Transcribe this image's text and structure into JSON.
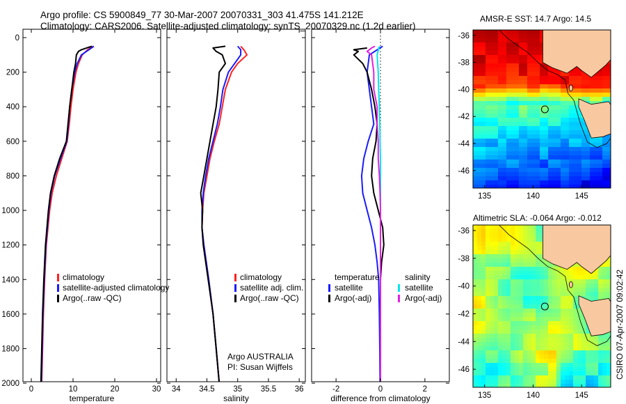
{
  "header": {
    "title_line1": "Argo profile: CS 5900849_77 30-Mar-2007 20070331_303 41.475S 141.212E",
    "title_line2": "Climatology: CARS2006. Satellite-adjusted climatology: synTS_20070329.nc (1.2d earlier)"
  },
  "side_text": "CSIRO 07-Apr-2007 09:02:42",
  "attribution": {
    "line1": "Argo AUSTRALIA",
    "line2": "PI: Susan Wijffels"
  },
  "colors": {
    "climatology": "#ff2020",
    "satellite": "#1a1aff",
    "argo": "#000000",
    "sat_salinity": "#00e5ee",
    "argo_salinity": "#e020e0",
    "land": "#f8c8a0"
  },
  "chart_data": [
    {
      "id": "temperature",
      "type": "line",
      "xlabel": "temperature",
      "ylabel": "",
      "xlim": [
        -2,
        31
      ],
      "ylim": [
        2040,
        0
      ],
      "x_ticks": [
        "0",
        "10",
        "20",
        "30"
      ],
      "y_ticks": [
        "0",
        "200",
        "400",
        "600",
        "800",
        "1000",
        "1200",
        "1400",
        "1600",
        "1800",
        "2000"
      ],
      "legend": [
        "climatology",
        "satellite-adjusted climatology",
        "Argo(..raw -QC)"
      ],
      "series": [
        {
          "name": "climatology",
          "color": "#ff2020",
          "depth": [
            50,
            70,
            100,
            150,
            200,
            300,
            400,
            500,
            600,
            700,
            800,
            900,
            1000,
            1200,
            1400,
            1600,
            1800,
            2000
          ],
          "values": [
            14.8,
            13.5,
            12.2,
            11.3,
            10.7,
            10.0,
            9.5,
            9.1,
            8.6,
            7.3,
            6.0,
            5.0,
            4.4,
            3.6,
            3.2,
            2.9,
            2.7,
            2.5
          ]
        },
        {
          "name": "satellite-adjusted climatology",
          "color": "#1a1aff",
          "depth": [
            50,
            70,
            100,
            150,
            200,
            300,
            400,
            500,
            600,
            700,
            800,
            900,
            1000,
            1200,
            1400,
            1600,
            1800,
            2000
          ],
          "values": [
            15.0,
            13.8,
            12.0,
            11.0,
            10.4,
            9.7,
            9.2,
            8.9,
            8.5,
            7.0,
            5.6,
            4.7,
            4.2,
            3.5,
            3.1,
            2.8,
            2.6,
            2.4
          ]
        },
        {
          "name": "Argo(..raw -QC)",
          "color": "#000000",
          "depth": [
            50,
            70,
            80,
            100,
            150,
            200,
            300,
            400,
            500,
            600,
            700,
            800,
            900,
            1000,
            1200,
            1400,
            1600,
            1800,
            2000
          ],
          "values": [
            14.5,
            12.0,
            11.3,
            10.8,
            10.6,
            10.2,
            9.7,
            9.2,
            8.8,
            8.4,
            6.8,
            5.5,
            4.6,
            4.1,
            3.4,
            3.0,
            2.7,
            2.5,
            2.3
          ]
        }
      ]
    },
    {
      "id": "salinity",
      "type": "line",
      "xlabel": "salinity",
      "ylabel": "",
      "xlim": [
        33.85,
        36.1
      ],
      "ylim": [
        2040,
        0
      ],
      "x_ticks": [
        "34",
        "34.5",
        "35",
        "35.5",
        "36"
      ],
      "legend": [
        "climatology",
        "satellite adj. clim.",
        "Argo(..raw -QC)"
      ],
      "series": [
        {
          "name": "climatology",
          "color": "#ff2020",
          "depth": [
            50,
            70,
            100,
            150,
            200,
            300,
            400,
            500,
            600,
            700,
            800,
            900,
            1000,
            1100,
            1200,
            1400,
            1600,
            1800,
            2000
          ],
          "values": [
            35.05,
            35.1,
            35.15,
            35.0,
            34.9,
            34.8,
            34.75,
            34.7,
            34.62,
            34.55,
            34.5,
            34.45,
            34.43,
            34.42,
            34.45,
            34.53,
            34.6,
            34.65,
            34.7
          ]
        },
        {
          "name": "satellite adj. clim.",
          "color": "#1a1aff",
          "depth": [
            50,
            70,
            100,
            150,
            200,
            300,
            400,
            500,
            600,
            700,
            800,
            900,
            1000,
            1100,
            1200,
            1400,
            1600,
            1800,
            2000
          ],
          "values": [
            35.0,
            35.05,
            35.05,
            34.95,
            34.85,
            34.76,
            34.72,
            34.67,
            34.6,
            34.53,
            34.48,
            34.44,
            34.42,
            34.42,
            34.45,
            34.53,
            34.6,
            34.65,
            34.7
          ]
        },
        {
          "name": "Argo(..raw -QC)",
          "color": "#000000",
          "depth": [
            50,
            60,
            80,
            100,
            150,
            200,
            300,
            400,
            500,
            600,
            700,
            800,
            900,
            1000,
            1100,
            1200,
            1400,
            1600,
            1800,
            2000
          ],
          "values": [
            34.8,
            34.6,
            34.65,
            34.75,
            34.8,
            34.7,
            34.68,
            34.65,
            34.6,
            34.55,
            34.5,
            34.45,
            34.4,
            34.43,
            34.42,
            34.44,
            34.52,
            34.6,
            34.65,
            34.7
          ]
        }
      ]
    },
    {
      "id": "difference",
      "type": "line",
      "xlabel": "difference from climatology",
      "ylabel": "",
      "xlim": [
        -3.1,
        3.1
      ],
      "ylim": [
        2040,
        0
      ],
      "x_ticks": [
        "-2",
        "0",
        "2"
      ],
      "legend": [
        "temperature",
        "satellite",
        "Argo(-adj)",
        "salinity",
        "satellite",
        "Argo(-adj)"
      ],
      "series": [
        {
          "name": "temperature satellite",
          "color": "#1a1aff",
          "depth": [
            50,
            100,
            200,
            300,
            400,
            500,
            600,
            700,
            800,
            900,
            1000,
            1100,
            1200,
            1300,
            1400,
            1600,
            1800,
            2000
          ],
          "values": [
            0.1,
            -0.5,
            -0.6,
            -0.5,
            -0.4,
            -0.3,
            -0.55,
            -0.75,
            -0.85,
            -0.8,
            -0.6,
            -0.4,
            -0.25,
            -0.15,
            -0.08,
            -0.05,
            -0.03,
            -0.02
          ]
        },
        {
          "name": "temperature Argo(-adj)",
          "color": "#000000",
          "depth": [
            60,
            70,
            80,
            100,
            150,
            200,
            300,
            400,
            500,
            600,
            700,
            800,
            900,
            1000,
            1100,
            1200,
            1300,
            1400,
            1600,
            1800,
            2000
          ],
          "values": [
            -0.6,
            -1.2,
            -1.0,
            -1.2,
            -0.8,
            -0.6,
            -0.4,
            -0.25,
            -0.15,
            -0.2,
            -0.35,
            -0.4,
            -0.3,
            -0.1,
            0.1,
            0.15,
            0.05,
            0.0,
            0.0,
            0.0,
            0.0
          ]
        },
        {
          "name": "salinity satellite",
          "color": "#00e5ee",
          "depth": [
            50,
            100,
            200,
            300,
            400,
            500,
            600,
            700,
            800,
            900,
            1000,
            1100,
            1200,
            1400,
            1600,
            1800,
            2000
          ],
          "values": [
            -0.05,
            -0.15,
            -0.1,
            -0.08,
            -0.05,
            -0.03,
            -0.02,
            0.0,
            0.0,
            0.0,
            0.0,
            0.0,
            0.0,
            0.0,
            0.0,
            0.0,
            0.0
          ]
        },
        {
          "name": "salinity Argo(-adj)",
          "color": "#e020e0",
          "depth": [
            50,
            60,
            80,
            100,
            200,
            300,
            400,
            500,
            600,
            700,
            800,
            900,
            1000,
            1200,
            1400,
            1600,
            1800,
            2000
          ],
          "values": [
            -0.25,
            -0.4,
            -0.6,
            -0.4,
            -0.3,
            -0.3,
            -0.15,
            -0.15,
            -0.1,
            -0.1,
            -0.05,
            -0.02,
            0.0,
            0.0,
            0.0,
            0.0,
            0.0,
            0.0
          ]
        }
      ]
    },
    {
      "id": "sst_map",
      "type": "heatmap",
      "title": "AMSR-E SST: 14.7 Argo: 14.5",
      "x_ticks": [
        "135",
        "140",
        "145"
      ],
      "y_ticks": [
        "-36",
        "-38",
        "-40",
        "-42",
        "-44",
        "-46"
      ],
      "xlim": [
        133.8,
        148.0
      ],
      "ylim": [
        -47.3,
        -35.6
      ],
      "float_position": {
        "lon": 141.212,
        "lat": -41.475
      }
    },
    {
      "id": "sla_map",
      "type": "heatmap",
      "title": "Altimetric SLA: -0.064 Argo: -0.012",
      "x_ticks": [
        "135",
        "140",
        "145"
      ],
      "y_ticks": [
        "-36",
        "-38",
        "-40",
        "-42",
        "-44",
        "-46"
      ],
      "xlim": [
        133.8,
        148.0
      ],
      "ylim": [
        -47.3,
        -35.6
      ],
      "float_position": {
        "lon": 141.212,
        "lat": -41.475
      }
    }
  ]
}
